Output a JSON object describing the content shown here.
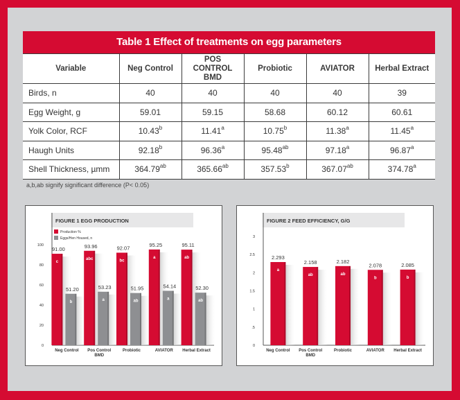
{
  "table": {
    "title": "Table 1 Effect of treatments on egg parameters",
    "headers": [
      "Variable",
      "Neg Control",
      "POS CONTROL BMD",
      "Probiotic",
      "AVIATOR",
      "Herbal Extract"
    ],
    "rows": [
      {
        "variable": "Birds, n",
        "cells": [
          {
            "v": "40",
            "s": ""
          },
          {
            "v": "40",
            "s": ""
          },
          {
            "v": "40",
            "s": ""
          },
          {
            "v": "40",
            "s": ""
          },
          {
            "v": "39",
            "s": ""
          }
        ]
      },
      {
        "variable": "Egg Weight, g",
        "cells": [
          {
            "v": "59.01",
            "s": ""
          },
          {
            "v": "59.15",
            "s": ""
          },
          {
            "v": "58.68",
            "s": ""
          },
          {
            "v": "60.12",
            "s": ""
          },
          {
            "v": "60.61",
            "s": ""
          }
        ]
      },
      {
        "variable": "Yolk Color, RCF",
        "cells": [
          {
            "v": "10.43",
            "s": "b"
          },
          {
            "v": "11.41",
            "s": "a"
          },
          {
            "v": "10.75",
            "s": "b"
          },
          {
            "v": "11.38",
            "s": "a"
          },
          {
            "v": "11.45",
            "s": "a"
          }
        ]
      },
      {
        "variable": "Haugh Units",
        "cells": [
          {
            "v": "92.18",
            "s": "b"
          },
          {
            "v": "96.36",
            "s": "a"
          },
          {
            "v": "95.48",
            "s": "ab"
          },
          {
            "v": "97.18",
            "s": "a"
          },
          {
            "v": "96.87",
            "s": "a"
          }
        ]
      },
      {
        "variable": "Shell Thickness, µmm",
        "cells": [
          {
            "v": "364.79",
            "s": "ab"
          },
          {
            "v": "365.66",
            "s": "ab"
          },
          {
            "v": "357.53",
            "s": "b"
          },
          {
            "v": "367.07",
            "s": "ab"
          },
          {
            "v": "374.78",
            "s": "a"
          }
        ]
      }
    ],
    "footnote": "a,b,ab signify significant difference (P< 0.05)"
  },
  "colors": {
    "brand_red": "#d50b32",
    "gray_bar": "#8e8f92",
    "frame_gray": "#d2d3d5"
  },
  "chart_data": [
    {
      "type": "bar",
      "title": "FIGURE 1 EGG PRODUCTION",
      "categories": [
        "Neg Control",
        "Pos Control BMD",
        "Probiotic",
        "AVIATOR",
        "Herbal Extract"
      ],
      "series": [
        {
          "name": "Production %",
          "values": [
            91.0,
            93.96,
            92.07,
            95.25,
            95.11
          ],
          "labels": [
            "91.00",
            "93.96",
            "92.07",
            "95.25",
            "95.11"
          ],
          "letters": [
            "c",
            "abc",
            "bc",
            "a",
            "ab"
          ],
          "color": "#d50b32"
        },
        {
          "name": "Eggs/Hen Housed, n",
          "values": [
            51.2,
            53.23,
            51.95,
            54.14,
            52.3
          ],
          "labels": [
            "51.20",
            "53.23",
            "51.95",
            "54.14",
            "52.30"
          ],
          "letters": [
            "b",
            "a",
            "ab",
            "a",
            "ab"
          ],
          "color": "#8e8f92"
        }
      ],
      "yticks": [
        "0",
        "20",
        "40",
        "60",
        "80",
        "100"
      ],
      "ylim": [
        0,
        100
      ],
      "xlabel": "",
      "ylabel": "",
      "legend": "top-left",
      "grid": false
    },
    {
      "type": "bar",
      "title": "FIGURE 2 FEED EFFICIENCY, G/G",
      "categories": [
        "Neg Control",
        "Pos Control BMD",
        "Probiotic",
        "AVIATOR",
        "Herbal Extract"
      ],
      "series": [
        {
          "name": "Feed efficiency",
          "values": [
            2.293,
            2.158,
            2.182,
            2.078,
            2.085
          ],
          "labels": [
            "2.293",
            "2.158",
            "2.182",
            "2.078",
            "2.085"
          ],
          "letters": [
            "a",
            "ab",
            "ab",
            "b",
            "b"
          ],
          "color": "#d50b32"
        }
      ],
      "yticks": [
        "0",
        ".5",
        "1",
        "1.5",
        "2",
        "2.5",
        "3"
      ],
      "ylim": [
        0,
        3
      ],
      "xlabel": "",
      "ylabel": "",
      "grid": false
    }
  ]
}
